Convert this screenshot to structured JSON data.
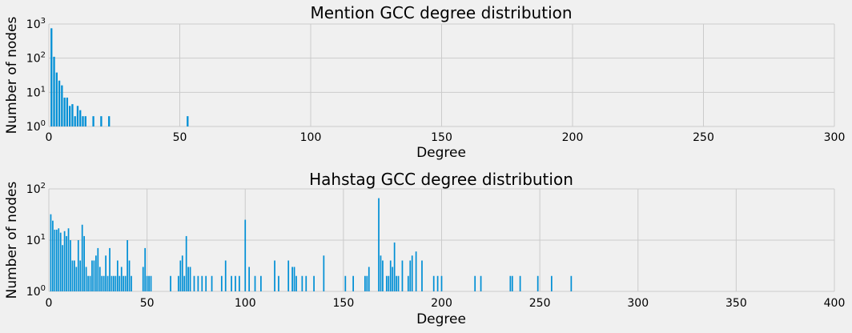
{
  "chart_data": [
    {
      "type": "bar",
      "title": "Mention GCC degree distribution",
      "xlabel": "Degree",
      "ylabel": "Number of nodes",
      "xscale": "linear",
      "yscale": "log",
      "xlim": [
        0,
        300
      ],
      "ylim": [
        1,
        1000
      ],
      "xticks": [
        0,
        50,
        100,
        150,
        200,
        250,
        300
      ],
      "yticks": [
        1,
        10,
        100,
        1000
      ],
      "ytick_labels": [
        {
          "base": "10",
          "exp": "0"
        },
        {
          "base": "10",
          "exp": "1"
        },
        {
          "base": "10",
          "exp": "2"
        },
        {
          "base": "10",
          "exp": "3"
        }
      ],
      "grid": true,
      "bar_color": "#008fd5",
      "x": [
        1,
        2,
        3,
        4,
        5,
        6,
        7,
        8,
        9,
        10,
        11,
        12,
        13,
        14,
        17,
        20,
        23,
        53
      ],
      "values": [
        750,
        110,
        38,
        22,
        16,
        7,
        7,
        4,
        4.5,
        2,
        4,
        3,
        2,
        2,
        2,
        2,
        2,
        2
      ]
    },
    {
      "type": "bar",
      "title": "Hahstag GCC degree distribution",
      "xlabel": "Degree",
      "ylabel": "Number of nodes",
      "xscale": "linear",
      "yscale": "log",
      "xlim": [
        0,
        400
      ],
      "ylim": [
        1,
        100
      ],
      "xticks": [
        0,
        50,
        100,
        150,
        200,
        250,
        300,
        350,
        400
      ],
      "yticks": [
        1,
        10,
        100
      ],
      "ytick_labels": [
        {
          "base": "10",
          "exp": "0"
        },
        {
          "base": "10",
          "exp": "1"
        },
        {
          "base": "10",
          "exp": "2"
        }
      ],
      "grid": true,
      "bar_color": "#008fd5",
      "x": [
        1,
        2,
        3,
        4,
        5,
        6,
        7,
        8,
        9,
        10,
        11,
        12,
        13,
        14,
        15,
        16,
        17,
        18,
        19,
        20,
        21,
        22,
        23,
        24,
        25,
        26,
        27,
        28,
        29,
        30,
        31,
        32,
        33,
        34,
        35,
        36,
        37,
        38,
        39,
        40,
        41,
        42,
        48,
        49,
        50,
        51,
        52,
        62,
        66,
        67,
        68,
        69,
        70,
        71,
        72,
        74,
        76,
        78,
        80,
        83,
        88,
        90,
        93,
        95,
        97,
        100,
        102,
        105,
        108,
        115,
        117,
        122,
        124,
        125,
        126,
        129,
        131,
        135,
        140,
        151,
        155,
        161,
        162,
        163,
        168,
        169,
        170,
        172,
        173,
        174,
        175,
        176,
        177,
        178,
        180,
        183,
        184,
        185,
        187,
        190,
        196,
        198,
        200,
        217,
        220,
        235,
        236,
        240,
        249,
        256,
        266
      ],
      "values": [
        32,
        24,
        16,
        16,
        17,
        14,
        8,
        15,
        12,
        17,
        10,
        4,
        4,
        3,
        10,
        4,
        20,
        12,
        3,
        2,
        2,
        4,
        4,
        5,
        7,
        3,
        2,
        2,
        5,
        2,
        7,
        2,
        2,
        2,
        4,
        2,
        3,
        2,
        2,
        10,
        4,
        2,
        3,
        7,
        2,
        2,
        2,
        2,
        2,
        4,
        5,
        2,
        12,
        3,
        3,
        2,
        2,
        2,
        2,
        2,
        2,
        4,
        2,
        2,
        2,
        25,
        3,
        2,
        2,
        4,
        2,
        4,
        3,
        3,
        2,
        2,
        2,
        2,
        5,
        2,
        2,
        2,
        2,
        3,
        66,
        5,
        4,
        2,
        2,
        4,
        3,
        9,
        2,
        2,
        4,
        2,
        4,
        5,
        6,
        4,
        2,
        2,
        2,
        2,
        2,
        2,
        2,
        2,
        2,
        2,
        2
      ]
    }
  ]
}
